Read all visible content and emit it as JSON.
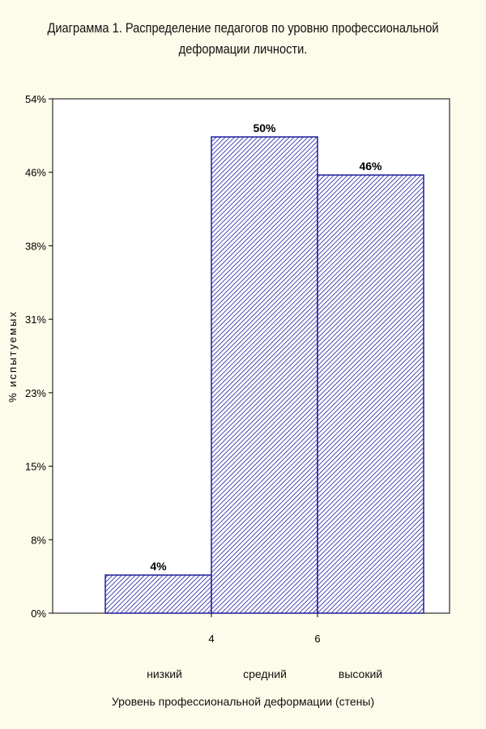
{
  "title_line1": "Диаграмма 1. Распределение педагогов по уровню профессиональной",
  "title_line2": "деформации личности.",
  "chart_data": {
    "type": "bar",
    "title": "Диаграмма 1. Распределение педагогов по уровню профессиональной деформации личности.",
    "xlabel": "Уровень профессиональной деформации (стены)",
    "ylabel": "% испытуемых",
    "y_ticks": [
      "0%",
      "8%",
      "15%",
      "23%",
      "31%",
      "38%",
      "46%",
      "54%"
    ],
    "ylim": [
      0,
      54
    ],
    "x_ticks": [
      "4",
      "6"
    ],
    "categories": [
      "низкий",
      "средний",
      "высокий"
    ],
    "values": [
      4,
      50,
      46
    ],
    "value_labels": [
      "4%",
      "50%",
      "46%"
    ],
    "bar_color": "#1c1c9c",
    "fill_pattern": "diagonal-hatch",
    "grid": false
  }
}
